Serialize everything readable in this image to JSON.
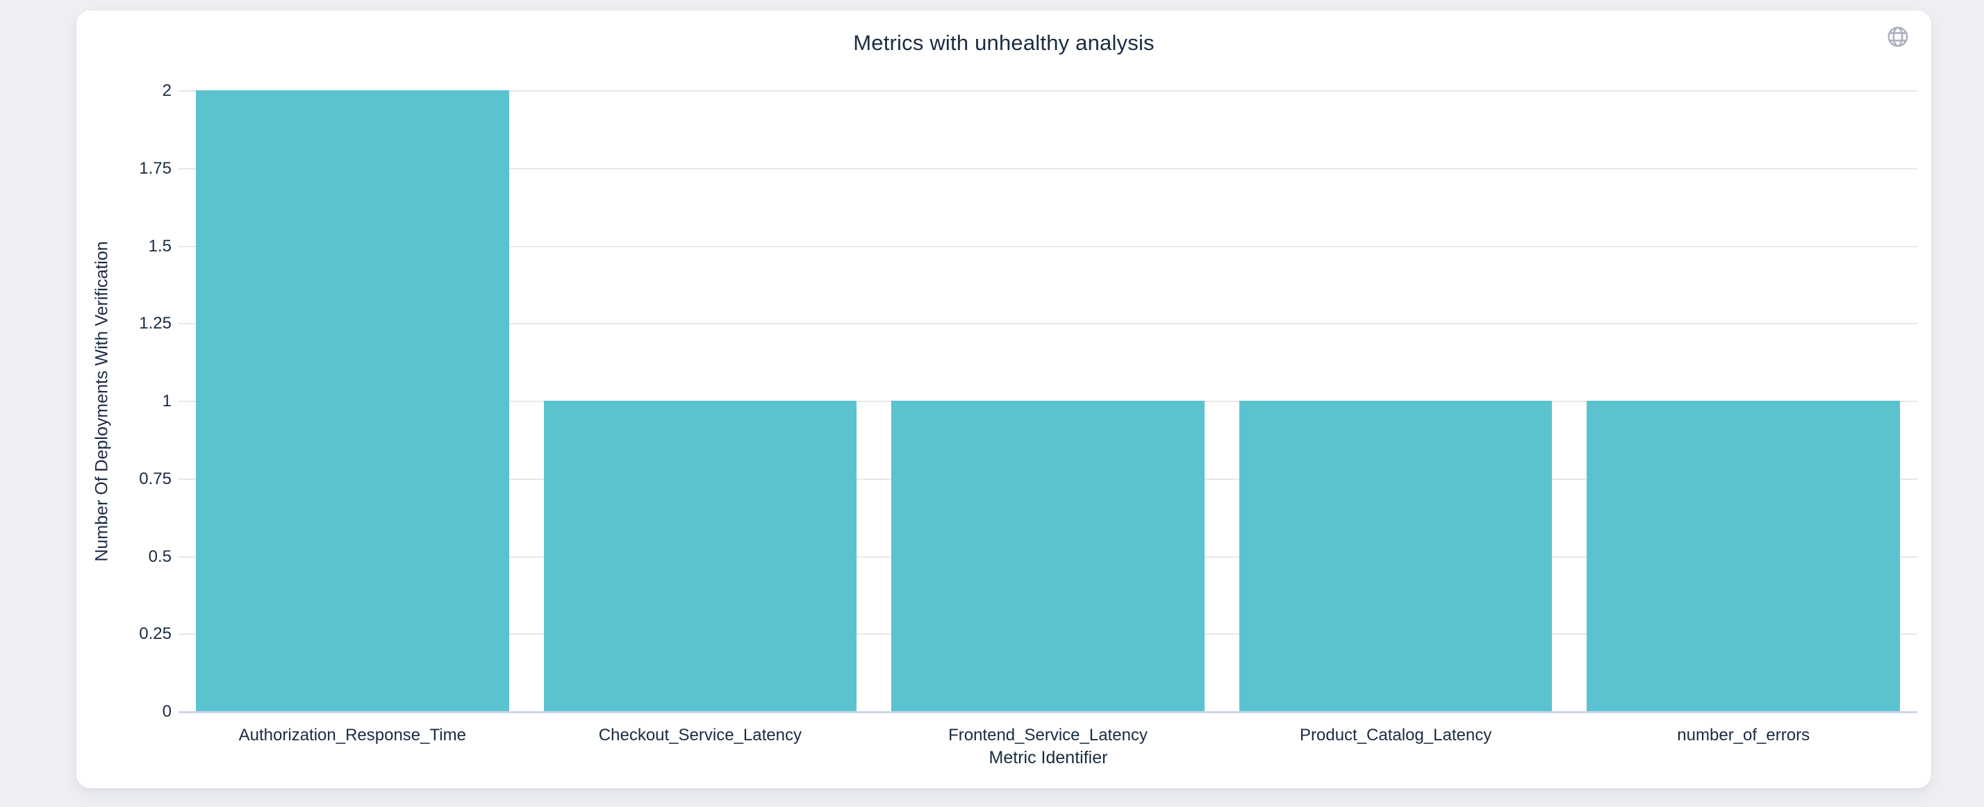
{
  "page": {
    "background_color": "#eef0f3"
  },
  "card": {
    "background_color": "#ffffff",
    "globe_icon": "globe-icon",
    "globe_icon_color": "#a9b2c0"
  },
  "chart_data": {
    "type": "bar",
    "title": "Metrics with unhealthy analysis",
    "xlabel": "Metric Identifier",
    "ylabel": "Number Of Deployments With Verification",
    "categories": [
      "Authorization_Response_Time",
      "Checkout_Service_Latency",
      "Frontend_Service_Latency",
      "Product_Catalog_Latency",
      "number_of_errors"
    ],
    "values": [
      2,
      1,
      1,
      1,
      1
    ],
    "ytick_labels": [
      "0",
      "0.25",
      "0.5",
      "0.75",
      "1",
      "1.25",
      "1.5",
      "1.75",
      "2"
    ],
    "ytick_values": [
      0,
      0.25,
      0.5,
      0.75,
      1,
      1.25,
      1.5,
      1.75,
      2
    ],
    "ylim": [
      0,
      2
    ],
    "grid": true,
    "legend": "none",
    "bar_color": "#5bc3d0",
    "gridline_color": "#e8e8e8",
    "axis_line_color": "#ccd6e8",
    "text_color": "#1a2b42",
    "bar_gap_fraction": 0.1
  }
}
